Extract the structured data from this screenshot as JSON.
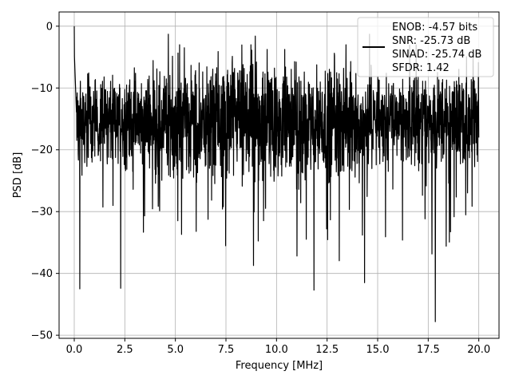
{
  "chart_data": {
    "type": "line",
    "xlabel": "Frequency [MHz]",
    "ylabel": "PSD [dB]",
    "xlim": [
      -0.75,
      21.0
    ],
    "ylim": [
      -50.5,
      2.3
    ],
    "x_ticks": [
      0.0,
      2.5,
      5.0,
      7.5,
      10.0,
      12.5,
      15.0,
      17.5,
      20.0
    ],
    "x_tick_labels": [
      "0.0",
      "2.5",
      "5.0",
      "7.5",
      "10.0",
      "12.5",
      "15.0",
      "17.5",
      "20.0"
    ],
    "y_ticks": [
      0,
      -10,
      -20,
      -30,
      -40,
      -50
    ],
    "y_tick_labels": [
      "0",
      "−10",
      "−20",
      "−30",
      "−40",
      "−50"
    ],
    "grid": true,
    "legend_placement": "top-right",
    "legend_lines": [
      "ENOB: -4.57 bits",
      "SNR: -25.73 dB",
      "SINAD: -25.74 dB",
      "SFDR: 1.42"
    ],
    "series": [
      {
        "color": "#000000",
        "x_range": [
          0.0,
          20.0
        ],
        "n_points": 2048,
        "mean_level_db": -15.5,
        "peaks": [
          {
            "x": 0.0,
            "y": 0.0
          },
          {
            "x": 0.27,
            "y": -42.5
          },
          {
            "x": 2.3,
            "y": -42.4
          },
          {
            "x": 11.85,
            "y": -42.7
          },
          {
            "x": 14.35,
            "y": -41.5
          },
          {
            "x": 17.85,
            "y": -47.8
          },
          {
            "x": 4.65,
            "y": -1.3
          },
          {
            "x": 8.95,
            "y": -1.6
          },
          {
            "x": 14.6,
            "y": -1.3
          }
        ]
      }
    ]
  }
}
